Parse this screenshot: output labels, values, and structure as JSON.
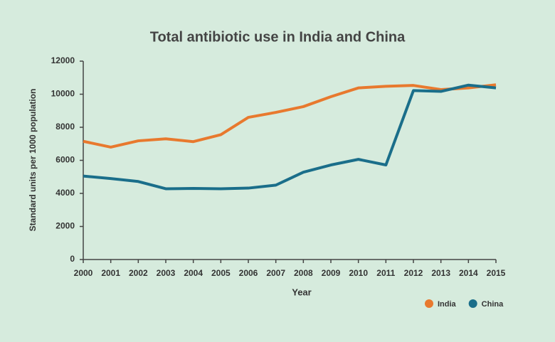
{
  "chart_data": {
    "type": "line",
    "title": "Total antibiotic use in India and China",
    "x_label": "Year",
    "y_label": "Standard units per 1000 population",
    "x": [
      2000,
      2001,
      2002,
      2003,
      2004,
      2005,
      2006,
      2007,
      2008,
      2009,
      2010,
      2011,
      2012,
      2013,
      2014,
      2015
    ],
    "series": [
      {
        "name": "India",
        "color": "#e8792e",
        "values": [
          7150,
          6800,
          7180,
          7300,
          7130,
          7550,
          8600,
          8900,
          9250,
          9850,
          10380,
          10480,
          10530,
          10280,
          10380,
          10570
        ]
      },
      {
        "name": "China",
        "color": "#1a6e8a",
        "values": [
          5050,
          4900,
          4720,
          4280,
          4300,
          4280,
          4320,
          4500,
          5280,
          5720,
          6060,
          5720,
          10220,
          10170,
          10550,
          10380
        ]
      }
    ],
    "xlim": [
      2000,
      2015
    ],
    "xticks": [
      2000,
      2001,
      2002,
      2003,
      2004,
      2005,
      2006,
      2007,
      2008,
      2009,
      2010,
      2011,
      2012,
      2013,
      2014,
      2015
    ],
    "ylim": [
      0,
      12000
    ],
    "yticks": [
      0,
      2000,
      4000,
      6000,
      8000,
      10000,
      12000
    ],
    "grid": false,
    "legend": "bottom-right"
  }
}
